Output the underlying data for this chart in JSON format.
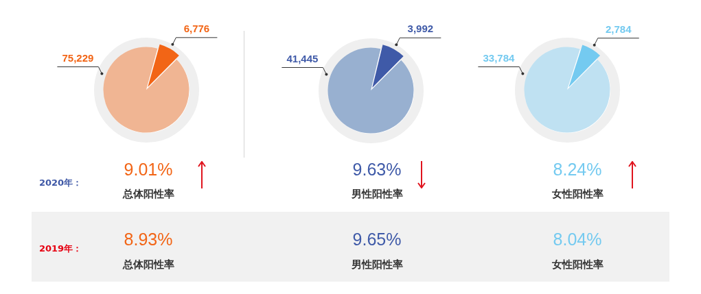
{
  "chart_data": [
    {
      "type": "pie",
      "categories": [
        null,
        null
      ],
      "values": [
        75229,
        6776
      ],
      "colors": [
        "#f0b593",
        "#f26516"
      ],
      "value_labels": [
        "75,229",
        "6,776"
      ]
    },
    {
      "type": "pie",
      "categories": [
        null,
        null
      ],
      "values": [
        41445,
        3992
      ],
      "colors": [
        "#98b0d0",
        "#3f5aa8"
      ],
      "value_labels": [
        "41,445",
        "3,992"
      ]
    },
    {
      "type": "pie",
      "categories": [
        null,
        null
      ],
      "values": [
        33784,
        2784
      ],
      "colors": [
        "#bfe1f2",
        "#74caf0"
      ],
      "value_labels": [
        "33,784",
        "2,784"
      ]
    },
    {
      "type": "other",
      "annotations": [
        "2020年：",
        "9.01%",
        "总体阳性率",
        "9.63%",
        "男性阳性率",
        "8.24%",
        "女性阳性率",
        "2019年：",
        "8.93%",
        "总体阳性率",
        "9.65%",
        "男性阳性率",
        "8.04%",
        "女性阳性率"
      ]
    }
  ]
}
